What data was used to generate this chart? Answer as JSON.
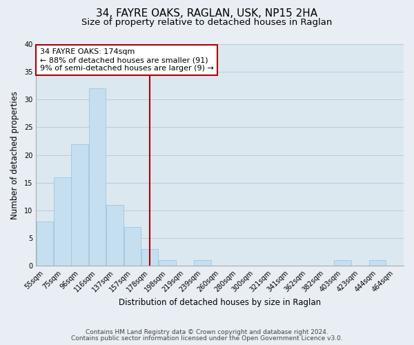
{
  "title": "34, FAYRE OAKS, RAGLAN, USK, NP15 2HA",
  "subtitle": "Size of property relative to detached houses in Raglan",
  "xlabel": "Distribution of detached houses by size in Raglan",
  "ylabel": "Number of detached properties",
  "bins": [
    "55sqm",
    "75sqm",
    "96sqm",
    "116sqm",
    "137sqm",
    "157sqm",
    "178sqm",
    "198sqm",
    "219sqm",
    "239sqm",
    "260sqm",
    "280sqm",
    "300sqm",
    "321sqm",
    "341sqm",
    "362sqm",
    "382sqm",
    "403sqm",
    "423sqm",
    "444sqm",
    "464sqm"
  ],
  "values": [
    8,
    16,
    22,
    32,
    11,
    7,
    3,
    1,
    0,
    1,
    0,
    0,
    0,
    0,
    0,
    0,
    0,
    1,
    0,
    1,
    0
  ],
  "bar_color": "#c5dff0",
  "bar_edge_color": "#a0c4de",
  "bar_width": 0.97,
  "vline_x_index": 6,
  "vline_color": "#aa0000",
  "annotation_line1": "34 FAYRE OAKS: 174sqm",
  "annotation_line2": "← 88% of detached houses are smaller (91)",
  "annotation_line3": "9% of semi-detached houses are larger (9) →",
  "ylim": [
    0,
    40
  ],
  "yticks": [
    0,
    5,
    10,
    15,
    20,
    25,
    30,
    35,
    40
  ],
  "footnote_line1": "Contains HM Land Registry data © Crown copyright and database right 2024.",
  "footnote_line2": "Contains public sector information licensed under the Open Government Licence v3.0.",
  "background_color": "#e8eef4",
  "plot_bg_color": "#dce8f0",
  "title_fontsize": 11,
  "subtitle_fontsize": 9.5,
  "axis_label_fontsize": 8.5,
  "tick_fontsize": 7,
  "annotation_fontsize": 8,
  "footnote_fontsize": 6.5
}
